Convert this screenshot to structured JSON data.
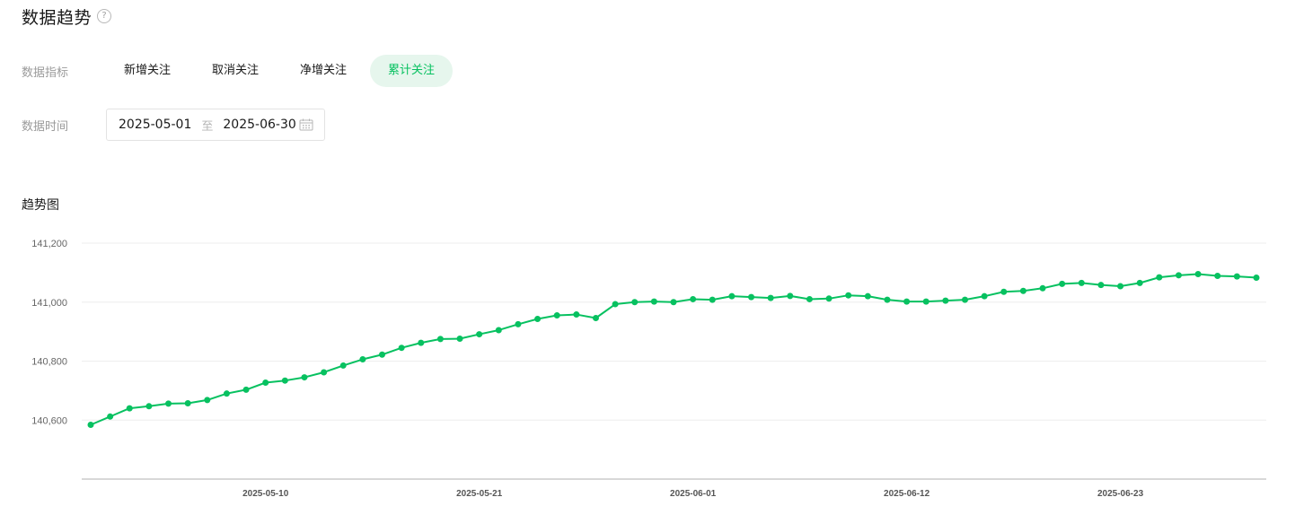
{
  "header": {
    "title": "数据趋势",
    "help_icon": "question-circle-icon"
  },
  "metrics": {
    "label": "数据指标",
    "tabs": [
      {
        "label": "新增关注",
        "active": false
      },
      {
        "label": "取消关注",
        "active": false
      },
      {
        "label": "净增关注",
        "active": false
      },
      {
        "label": "累计关注",
        "active": true
      }
    ]
  },
  "date_range": {
    "label": "数据时间",
    "start": "2025-05-01",
    "separator": "至",
    "end": "2025-06-30",
    "icon": "calendar-icon"
  },
  "chart_section": {
    "title": "趋势图"
  },
  "colors": {
    "accent": "#07c160",
    "active_tab_bg": "#e6f6ed",
    "grid": "#eeeeee",
    "axis": "#cccccc"
  },
  "chart_data": {
    "type": "line",
    "title": "",
    "xlabel": "",
    "ylabel": "",
    "ylim": [
      140400,
      141200
    ],
    "yticks": [
      140600,
      140800,
      141000,
      141200
    ],
    "ytick_labels": [
      "140,600",
      "140,800",
      "141,000",
      "141,200"
    ],
    "xticks": [
      "2025-05-10",
      "2025-05-21",
      "2025-06-01",
      "2025-06-12",
      "2025-06-23"
    ],
    "grid": true,
    "legend": "none",
    "x": [
      "2025-05-01",
      "2025-05-02",
      "2025-05-03",
      "2025-05-04",
      "2025-05-05",
      "2025-05-06",
      "2025-05-07",
      "2025-05-08",
      "2025-05-09",
      "2025-05-10",
      "2025-05-11",
      "2025-05-12",
      "2025-05-13",
      "2025-05-14",
      "2025-05-15",
      "2025-05-16",
      "2025-05-17",
      "2025-05-18",
      "2025-05-19",
      "2025-05-20",
      "2025-05-21",
      "2025-05-22",
      "2025-05-23",
      "2025-05-24",
      "2025-05-25",
      "2025-05-26",
      "2025-05-27",
      "2025-05-28",
      "2025-05-29",
      "2025-05-30",
      "2025-05-31",
      "2025-06-01",
      "2025-06-02",
      "2025-06-03",
      "2025-06-04",
      "2025-06-05",
      "2025-06-06",
      "2025-06-07",
      "2025-06-08",
      "2025-06-09",
      "2025-06-10",
      "2025-06-11",
      "2025-06-12",
      "2025-06-13",
      "2025-06-14",
      "2025-06-15",
      "2025-06-16",
      "2025-06-17",
      "2025-06-18",
      "2025-06-19",
      "2025-06-20",
      "2025-06-21",
      "2025-06-22",
      "2025-06-23",
      "2025-06-24",
      "2025-06-25",
      "2025-06-26",
      "2025-06-27",
      "2025-06-28",
      "2025-06-29",
      "2025-06-30"
    ],
    "series": [
      {
        "values": [
          140584,
          140612,
          140640,
          140647,
          140656,
          140657,
          140668,
          140690,
          140703,
          140727,
          140734,
          140745,
          140762,
          140785,
          140806,
          140822,
          140845,
          140862,
          140875,
          140876,
          140891,
          140905,
          140925,
          140943,
          140955,
          140958,
          140946,
          140993,
          141000,
          141002,
          141000,
          141010,
          141008,
          141020,
          141017,
          141014,
          141021,
          141010,
          141012,
          141023,
          141020,
          141008,
          141002,
          141002,
          141005,
          141008,
          141020,
          141035,
          141038,
          141047,
          141062,
          141065,
          141058,
          141054,
          141065,
          141084,
          141091,
          141095,
          141089,
          141087,
          141083
        ]
      }
    ]
  }
}
